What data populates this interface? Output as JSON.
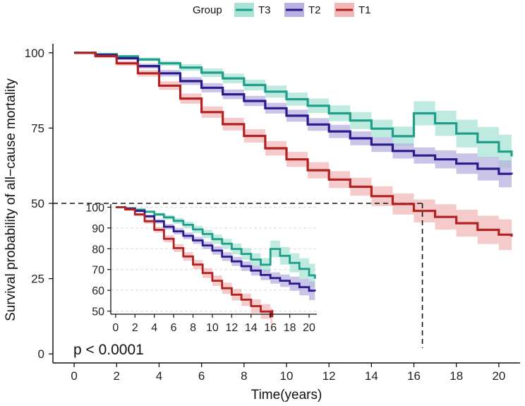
{
  "chart_data": {
    "type": "line",
    "subtype": "kaplan-meier",
    "xlabel": "Time(years)",
    "ylabel": "Survival probability of all−cause mortality",
    "xlim": [
      -1,
      21
    ],
    "ylim": [
      -3,
      103
    ],
    "x_ticks": [
      "0",
      "2",
      "4",
      "6",
      "8",
      "10",
      "12",
      "14",
      "16",
      "18",
      "20"
    ],
    "y_ticks": [
      "0",
      "25",
      "50",
      "75",
      "100"
    ],
    "annotation": "p < 0.0001",
    "reference_lines": {
      "y": 50,
      "x": 16.4
    },
    "legend": {
      "title": "Group",
      "position": "top",
      "labels": [
        "T3",
        "T2",
        "T1"
      ]
    },
    "series": [
      {
        "name": "T3",
        "color": "#1f9e89",
        "band": "#a8e3d6",
        "x": [
          0,
          1,
          2,
          3,
          4,
          5,
          6,
          7,
          8,
          9,
          10,
          11,
          12,
          13,
          14,
          15,
          16,
          17,
          18,
          19,
          20,
          20.6
        ],
        "y": [
          100,
          99.5,
          98.8,
          97.8,
          96.5,
          95.1,
          93.4,
          91.5,
          89.3,
          87.1,
          84.6,
          82.4,
          79.9,
          77.5,
          74.8,
          72.3,
          79.9,
          76.6,
          73.2,
          70.3,
          67.2,
          65.6
        ],
        "lower": [
          100,
          99.3,
          98.4,
          97.2,
          95.7,
          94.0,
          92.0,
          89.9,
          87.5,
          85.1,
          82.4,
          80.0,
          77.3,
          74.7,
          71.8,
          69.1,
          75.9,
          72.4,
          68.6,
          65.2,
          61.6,
          60.0
        ],
        "upper": [
          100,
          99.7,
          99.2,
          98.4,
          97.3,
          96.2,
          94.8,
          93.1,
          91.1,
          89.1,
          86.8,
          84.8,
          82.5,
          80.3,
          77.8,
          75.5,
          83.9,
          80.8,
          77.8,
          75.4,
          72.8,
          71.2
        ]
      },
      {
        "name": "T2",
        "color": "#2a1a8c",
        "band": "#b8b2e0",
        "x": [
          0,
          1,
          2,
          3,
          4,
          5,
          6,
          7,
          8,
          9,
          10,
          11,
          12,
          13,
          14,
          15,
          16,
          17,
          18,
          19,
          20,
          20.6
        ],
        "y": [
          100,
          99.3,
          98.2,
          95.6,
          93.2,
          90.6,
          88.4,
          86.2,
          84.0,
          81.6,
          79.1,
          76.2,
          73.9,
          71.6,
          69.5,
          67.4,
          65.9,
          64.6,
          63.2,
          61.5,
          59.8,
          59.6
        ],
        "lower": [
          100,
          99.0,
          97.7,
          94.8,
          92.1,
          89.3,
          86.9,
          84.6,
          82.3,
          79.8,
          77.1,
          74.1,
          71.7,
          69.3,
          67.1,
          64.9,
          63.2,
          61.6,
          59.8,
          57.6,
          55.3,
          55.0
        ],
        "upper": [
          100,
          99.6,
          98.7,
          96.4,
          94.3,
          91.9,
          89.9,
          87.8,
          85.7,
          83.4,
          81.1,
          78.3,
          76.1,
          73.9,
          71.9,
          69.9,
          68.6,
          67.6,
          66.6,
          65.4,
          64.3,
          64.2
        ]
      },
      {
        "name": "T1",
        "color": "#b22222",
        "band": "#f0b8b8",
        "x": [
          0,
          1,
          2,
          3,
          4,
          5,
          6,
          7,
          8,
          9,
          10,
          11,
          12,
          13,
          14,
          15,
          16,
          17,
          18,
          19,
          20,
          20.6
        ],
        "y": [
          100,
          98.9,
          96.5,
          93.2,
          89.1,
          84.8,
          80.3,
          76.3,
          72.4,
          68.3,
          64.6,
          61.0,
          57.9,
          55.5,
          52.4,
          49.8,
          47.5,
          45.5,
          43.4,
          41.2,
          39.6,
          38.9
        ],
        "lower": [
          100,
          98.4,
          95.7,
          92.1,
          87.7,
          83.1,
          78.4,
          74.2,
          70.2,
          65.9,
          62.1,
          58.3,
          55.1,
          52.5,
          49.1,
          46.3,
          43.7,
          41.3,
          38.9,
          36.5,
          34.5,
          33.8
        ],
        "upper": [
          100,
          99.4,
          97.3,
          94.3,
          90.5,
          86.5,
          82.2,
          78.4,
          74.6,
          70.7,
          67.1,
          63.7,
          60.7,
          58.5,
          55.7,
          53.3,
          51.3,
          49.7,
          47.9,
          45.9,
          44.7,
          44.0
        ]
      }
    ],
    "inset": {
      "type": "line",
      "xlim": [
        -0.5,
        20.8
      ],
      "ylim": [
        48.5,
        101.5
      ],
      "x_ticks": [
        "0",
        "2",
        "4",
        "6",
        "8",
        "10",
        "12",
        "14",
        "16",
        "18",
        "20"
      ],
      "y_ticks": [
        "50",
        "60",
        "70",
        "80",
        "90",
        "100"
      ],
      "series": [
        {
          "name": "T3",
          "x": [
            0,
            1,
            2,
            3,
            4,
            5,
            6,
            7,
            8,
            9,
            10,
            11,
            12,
            13,
            14,
            15,
            16,
            17,
            18,
            19,
            20,
            20.6
          ],
          "y": [
            100,
            99.5,
            98.8,
            97.8,
            96.5,
            95.1,
            93.4,
            91.5,
            89.3,
            87.1,
            84.6,
            82.4,
            79.9,
            77.5,
            74.8,
            72.3,
            79.9,
            76.6,
            73.2,
            70.3,
            67.2,
            65.6
          ],
          "lower": [
            100,
            99.3,
            98.4,
            97.2,
            95.7,
            94.0,
            92.0,
            89.9,
            87.5,
            85.1,
            82.4,
            80.0,
            77.3,
            74.7,
            71.8,
            69.1,
            75.9,
            72.4,
            68.6,
            65.2,
            61.6,
            60.0
          ],
          "upper": [
            100,
            99.7,
            99.2,
            98.4,
            97.3,
            96.2,
            94.8,
            93.1,
            91.1,
            89.1,
            86.8,
            84.8,
            82.5,
            80.3,
            77.8,
            75.5,
            83.9,
            80.8,
            77.8,
            75.4,
            72.8,
            71.2
          ]
        },
        {
          "name": "T2",
          "x": [
            0,
            1,
            2,
            3,
            4,
            5,
            6,
            7,
            8,
            9,
            10,
            11,
            12,
            13,
            14,
            15,
            16,
            17,
            18,
            19,
            20,
            20.6
          ],
          "y": [
            100,
            99.3,
            98.2,
            95.6,
            93.2,
            90.6,
            88.4,
            86.2,
            84.0,
            81.6,
            79.1,
            76.2,
            73.9,
            71.6,
            69.5,
            67.4,
            65.9,
            64.6,
            63.2,
            61.5,
            59.8,
            59.6
          ],
          "lower": [
            100,
            99.0,
            97.7,
            94.8,
            92.1,
            89.3,
            86.9,
            84.6,
            82.3,
            79.8,
            77.1,
            74.1,
            71.7,
            69.3,
            67.1,
            64.9,
            63.2,
            61.6,
            59.8,
            57.6,
            55.3,
            55.0
          ],
          "upper": [
            100,
            99.6,
            98.7,
            96.4,
            94.3,
            91.9,
            89.9,
            87.8,
            85.7,
            83.4,
            81.1,
            78.3,
            76.1,
            73.9,
            71.9,
            69.9,
            68.6,
            67.6,
            66.6,
            65.4,
            64.3,
            64.2
          ]
        },
        {
          "name": "T1",
          "x": [
            0,
            1,
            2,
            3,
            4,
            5,
            6,
            7,
            8,
            9,
            10,
            11,
            12,
            13,
            14,
            15,
            16,
            16.2
          ],
          "y": [
            100,
            98.9,
            96.5,
            93.2,
            89.1,
            84.8,
            80.3,
            76.3,
            72.4,
            68.3,
            64.6,
            61.0,
            57.9,
            55.5,
            52.4,
            49.8,
            47.5,
            50.5
          ],
          "lower": [
            100,
            98.4,
            95.7,
            92.1,
            87.7,
            83.1,
            78.4,
            74.2,
            70.2,
            65.9,
            62.1,
            58.3,
            55.1,
            52.5,
            49.1,
            46.3,
            43.7,
            50.0
          ],
          "upper": [
            100,
            99.4,
            97.3,
            94.3,
            90.5,
            86.5,
            82.2,
            78.4,
            74.6,
            70.7,
            67.1,
            63.7,
            60.7,
            58.5,
            55.7,
            53.3,
            51.3,
            51.0
          ]
        }
      ]
    }
  }
}
